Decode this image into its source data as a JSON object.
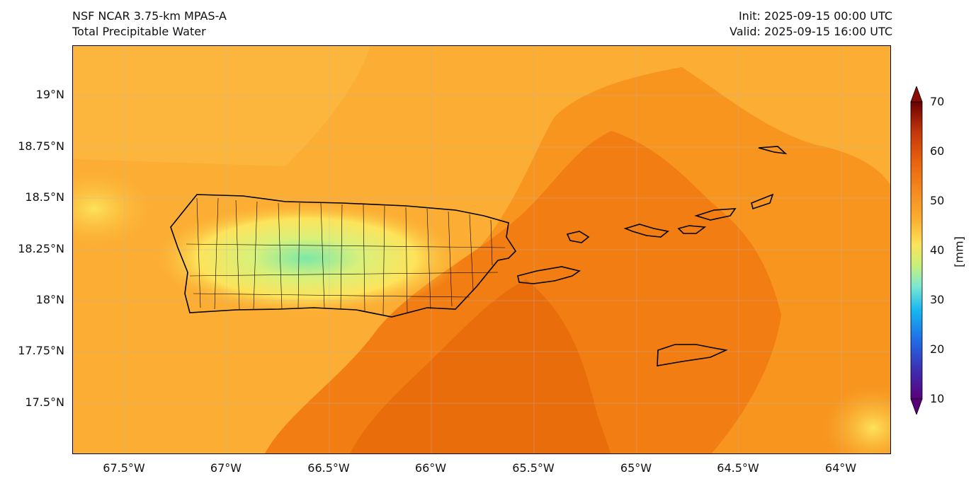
{
  "header": {
    "model": "NSF NCAR 3.75-km MPAS-A",
    "field": "Total Precipitable Water",
    "init": "Init: 2025-09-15 00:00 UTC",
    "valid": "Valid: 2025-09-15 16:00 UTC"
  },
  "map": {
    "lat_ticks": [
      "19°N",
      "18.75°N",
      "18.5°N",
      "18.25°N",
      "18°N",
      "17.75°N",
      "17.5°N"
    ],
    "lon_ticks": [
      "67.5°W",
      "67°W",
      "66.5°W",
      "66°W",
      "65.5°W",
      "65°W",
      "64.5°W",
      "64°W"
    ],
    "background_color": "#fcad33",
    "coastline_color": "#000000"
  },
  "colorbar": {
    "ticks": [
      "70",
      "60",
      "50",
      "40",
      "30",
      "20",
      "10"
    ],
    "unit": "[mm]",
    "colors": [
      "#5a007a",
      "#3d2fb5",
      "#1f6ee8",
      "#17b8f0",
      "#7de8d0",
      "#c8f07a",
      "#fde35a",
      "#fbb032",
      "#f58a1e",
      "#e8620f",
      "#c2360a",
      "#8a0d05",
      "#6b0000"
    ]
  }
}
